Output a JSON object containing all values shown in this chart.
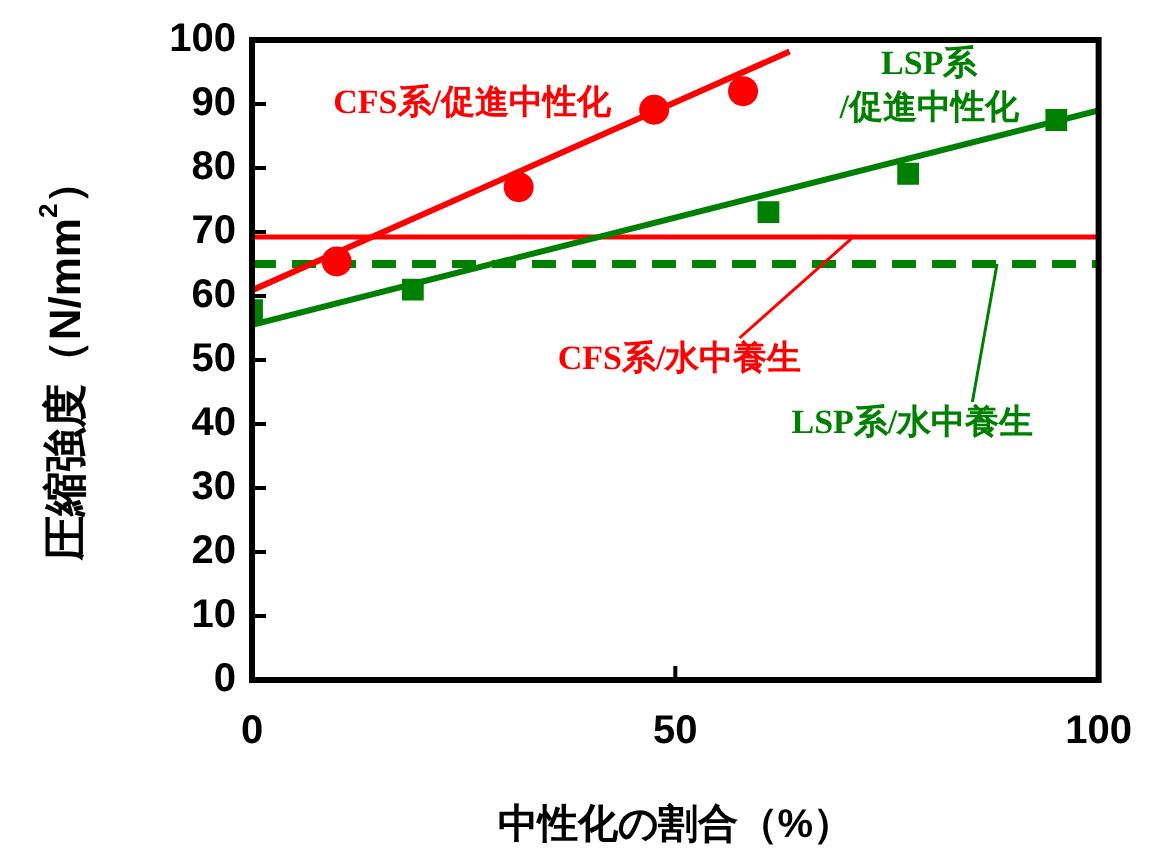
{
  "chart_data": {
    "type": "scatter",
    "xlabel": "中性化の割合（%）",
    "ylabel": "圧縮強度（N/mm$^{2}$）",
    "xlim": [
      0,
      100
    ],
    "xticks": [
      0,
      50,
      100
    ],
    "ylim": [
      0,
      100
    ],
    "yticks": [
      0,
      10,
      20,
      30,
      40,
      50,
      60,
      70,
      80,
      90,
      100
    ],
    "grid": false,
    "legend": false,
    "series": [
      {
        "name": "CFS系/促進中性化",
        "color": "#ff0000",
        "marker": "circle",
        "x": [
          10,
          31.5,
          47.5,
          58
        ],
        "values": [
          65.4,
          77,
          89.1,
          92
        ]
      },
      {
        "type": "line",
        "color": "#ff0000",
        "marker": "none",
        "line_style": "solid",
        "x": [
          0,
          63.5
        ],
        "values": [
          60.9,
          98.2
        ]
      },
      {
        "name": "LSP系/促進中性化",
        "color": "#008000",
        "marker": "square",
        "x": [
          0,
          19,
          61,
          77.5,
          95
        ],
        "values": [
          57.8,
          61,
          73.1,
          79.1,
          87.5
        ]
      },
      {
        "type": "line",
        "color": "#008000",
        "marker": "none",
        "line_style": "solid",
        "x": [
          0,
          100
        ],
        "values": [
          55.5,
          89
        ]
      }
    ],
    "ref_lines": [
      {
        "axis": "y",
        "value": 69.2,
        "label": "CFS系/水中養生",
        "color": "#ff0000",
        "line_style": "solid"
      },
      {
        "axis": "y",
        "value": 65,
        "label": "LSP系/水中養生",
        "color": "#008000",
        "line_style": "dashed"
      }
    ]
  }
}
